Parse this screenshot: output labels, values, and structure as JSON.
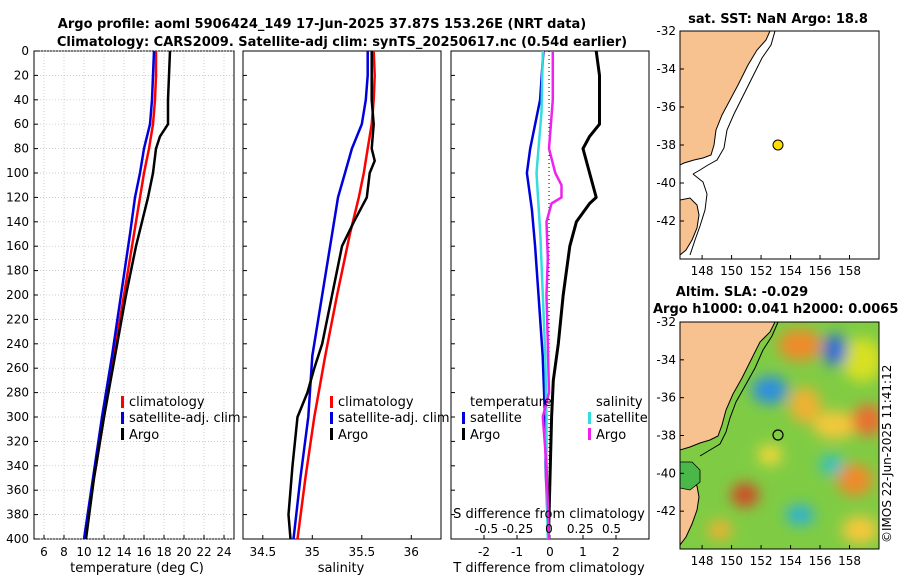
{
  "header": {
    "title_line1": "Argo profile: aoml 5906424_149 17-Jun-2025 37.87S 153.26E (NRT data)",
    "title_line2": "Climatology: CARS2009. Satellite-adj clim: synTS_20250617.nc (0.54d earlier)"
  },
  "map_top": {
    "title": "sat. SST: NaN Argo: 18.8",
    "lat_ticks": [
      "-32",
      "-34",
      "-36",
      "-38",
      "-40",
      "-42"
    ],
    "lon_ticks": [
      "148",
      "150",
      "152",
      "154",
      "156",
      "158"
    ]
  },
  "map_bottom": {
    "title1": "Altim. SLA: -0.029",
    "title2": "Argo h1000: 0.041 h2000: 0.0065",
    "lat_ticks": [
      "-32",
      "-34",
      "-36",
      "-38",
      "-40",
      "-42"
    ],
    "lon_ticks": [
      "148",
      "150",
      "152",
      "154",
      "156",
      "158"
    ]
  },
  "credit": "©IMOS 22-Jun-2025 11:41:12",
  "colors": {
    "climatology": "#ff0000",
    "satellite_adj": "#0000dd",
    "argo": "#000000",
    "sal_satellite": "#33dddd",
    "sal_argo": "#ee22ee",
    "land": "#f7c190",
    "argo_marker": "#ffdd00"
  },
  "chart_data": [
    {
      "type": "line",
      "name": "temperature",
      "xlabel": "temperature (deg C)",
      "ylabel": "depth",
      "xlim": [
        5,
        25
      ],
      "ylim": [
        400,
        0
      ],
      "xticks": [
        "6",
        "8",
        "10",
        "12",
        "14",
        "16",
        "18",
        "20",
        "22",
        "24"
      ],
      "yticks": [
        "0",
        "20",
        "40",
        "60",
        "80",
        "100",
        "120",
        "140",
        "160",
        "180",
        "200",
        "220",
        "240",
        "260",
        "280",
        "300",
        "320",
        "340",
        "360",
        "380",
        "400"
      ],
      "legend": [
        "climatology",
        "satellite-adj. clim",
        "Argo"
      ],
      "series": [
        {
          "name": "climatology",
          "depth": [
            0,
            20,
            40,
            60,
            80,
            100,
            120,
            150,
            200,
            250,
            300,
            350,
            400
          ],
          "values": [
            17.2,
            17.2,
            17.1,
            16.9,
            16.5,
            16.0,
            15.6,
            15.0,
            14.0,
            13.0,
            12.0,
            11.0,
            10.1
          ]
        },
        {
          "name": "satellite-adj. clim",
          "depth": [
            0,
            20,
            40,
            60,
            80,
            100,
            120,
            150,
            200,
            250,
            300,
            350,
            400
          ],
          "values": [
            17.0,
            16.9,
            16.8,
            16.6,
            16.0,
            15.6,
            15.1,
            14.6,
            13.7,
            12.8,
            11.8,
            10.9,
            10.0
          ]
        },
        {
          "name": "Argo",
          "depth": [
            0,
            20,
            40,
            60,
            70,
            80,
            100,
            120,
            140,
            160,
            200,
            250,
            300,
            350,
            400
          ],
          "values": [
            18.6,
            18.5,
            18.4,
            18.4,
            17.6,
            17.2,
            16.9,
            16.4,
            15.8,
            15.2,
            14.2,
            13.1,
            12.0,
            11.0,
            10.2
          ]
        }
      ]
    },
    {
      "type": "line",
      "name": "salinity",
      "xlabel": "salinity",
      "xlim": [
        34.3,
        36.3
      ],
      "ylim": [
        400,
        0
      ],
      "xticks": [
        "34.5",
        "35",
        "35.5",
        "36"
      ],
      "legend": [
        "climatology",
        "satellite-adj. clim",
        "Argo"
      ],
      "series": [
        {
          "name": "climatology",
          "depth": [
            0,
            20,
            40,
            60,
            80,
            100,
            120,
            150,
            200,
            250,
            300,
            350,
            400
          ],
          "values": [
            35.62,
            35.63,
            35.62,
            35.6,
            35.56,
            35.52,
            35.47,
            35.38,
            35.25,
            35.13,
            35.02,
            34.93,
            34.85
          ]
        },
        {
          "name": "satellite-adj. clim",
          "depth": [
            0,
            20,
            40,
            60,
            80,
            100,
            120,
            150,
            200,
            250,
            300,
            350,
            400
          ],
          "values": [
            35.56,
            35.56,
            35.54,
            35.5,
            35.4,
            35.33,
            35.26,
            35.2,
            35.1,
            35.0,
            34.96,
            34.88,
            34.81
          ]
        },
        {
          "name": "Argo",
          "depth": [
            0,
            20,
            40,
            60,
            80,
            90,
            100,
            120,
            140,
            160,
            200,
            240,
            260,
            280,
            300,
            340,
            380,
            400
          ],
          "values": [
            35.6,
            35.6,
            35.6,
            35.62,
            35.6,
            35.63,
            35.58,
            35.55,
            35.42,
            35.3,
            35.2,
            35.1,
            35.02,
            34.95,
            34.85,
            34.8,
            34.76,
            34.78
          ]
        }
      ]
    },
    {
      "type": "line",
      "name": "differences",
      "xlabel": "T difference from climatology",
      "top_label": "S difference from climatology",
      "xlim": [
        -3,
        3
      ],
      "ylim": [
        400,
        0
      ],
      "xticks": [
        "-2",
        "-1",
        "0",
        "1",
        "2"
      ],
      "sal_ticks": [
        "-0.5",
        "-0.25",
        "0",
        "0.25",
        "0.5"
      ],
      "legend_temp": [
        "temperature",
        "satellite",
        "Argo"
      ],
      "legend_sal": [
        "salinity",
        "satellite",
        "Argo"
      ],
      "series": [
        {
          "name": "T satellite",
          "depth": [
            0,
            40,
            80,
            100,
            130,
            160,
            200,
            250,
            300,
            350,
            400
          ],
          "values": [
            -0.2,
            -0.3,
            -0.6,
            -0.7,
            -0.55,
            -0.45,
            -0.35,
            -0.22,
            -0.15,
            -0.12,
            -0.05
          ]
        },
        {
          "name": "T Argo",
          "depth": [
            0,
            20,
            40,
            60,
            70,
            80,
            100,
            120,
            125,
            140,
            160,
            200,
            240,
            270,
            300,
            350,
            400
          ],
          "values": [
            1.4,
            1.5,
            1.5,
            1.5,
            1.2,
            1.0,
            1.2,
            1.4,
            1.2,
            0.8,
            0.6,
            0.4,
            0.25,
            0.1,
            0.05,
            0.0,
            -0.05
          ]
        },
        {
          "name": "S satellite",
          "depth": [
            0,
            50,
            100,
            150,
            200,
            250,
            300,
            350,
            400
          ],
          "values": [
            -0.05,
            -0.06,
            -0.1,
            -0.07,
            -0.05,
            -0.03,
            -0.02,
            -0.02,
            -0.01
          ]
        },
        {
          "name": "S Argo",
          "depth": [
            0,
            40,
            80,
            100,
            110,
            120,
            125,
            140,
            170,
            200,
            240,
            280,
            300,
            340,
            400
          ],
          "values": [
            0.03,
            0.03,
            0.0,
            0.05,
            0.1,
            0.1,
            0.02,
            -0.02,
            -0.01,
            -0.02,
            -0.01,
            0.0,
            -0.05,
            -0.02,
            0.0
          ]
        }
      ]
    }
  ]
}
